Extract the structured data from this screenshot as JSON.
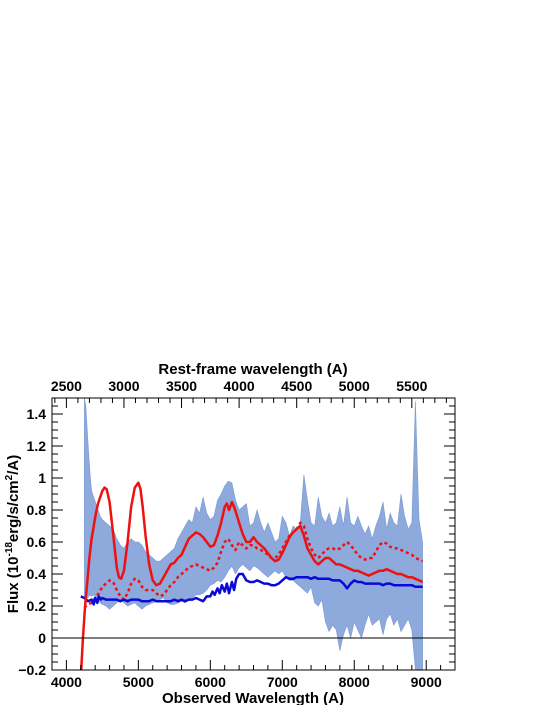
{
  "chart_data": {
    "type": "line",
    "title": "",
    "xlabel": "Observed Wavelength (A)",
    "x2label": "Rest-frame wavelength (A)",
    "ylabel_parts": {
      "prefix": "Flux (10",
      "exp1": "-18",
      "mid": "erg/s/cm",
      "exp2": "2",
      "suffix": "/A)"
    },
    "xlim": [
      3800,
      9400
    ],
    "ylim": [
      -0.2,
      1.5
    ],
    "x_ticks": [
      4000,
      5000,
      6000,
      7000,
      8000,
      9000
    ],
    "x_tick_labels": [
      "4000",
      "5000",
      "6000",
      "7000",
      "8000",
      "9000"
    ],
    "y_ticks": [
      -0.2,
      0,
      0.2,
      0.4,
      0.6,
      0.8,
      1,
      1.2,
      1.4
    ],
    "y_tick_labels": [
      "−0.2",
      "0",
      "0.2",
      "0.4",
      "0.6",
      "0.8",
      "1",
      "1.2",
      "1.4"
    ],
    "x2_ticks": [
      2500,
      3000,
      3500,
      4000,
      4500,
      5000,
      5500
    ],
    "x2_tick_labels": [
      "2500",
      "3000",
      "3500",
      "4000",
      "4500",
      "5000",
      "5500"
    ],
    "rest_frame_factor": 1.6,
    "reference_line_y": 0,
    "grid": false,
    "colors": {
      "observed": "#7a9ad6",
      "model": "#ee1111",
      "template": "#ee1111",
      "host": "#0a0ad8",
      "axis": "#000000"
    },
    "series": [
      {
        "style": "observed-band",
        "x": [
          4250,
          4270,
          4290,
          4310,
          4330,
          4350,
          4380,
          4410,
          4440,
          4470,
          4500,
          4550,
          4600,
          4650,
          4700,
          4750,
          4800,
          4850,
          4900,
          4950,
          5000,
          5050,
          5100,
          5150,
          5200,
          5250,
          5300,
          5350,
          5400,
          5450,
          5500,
          5550,
          5600,
          5650,
          5700,
          5750,
          5800,
          5850,
          5900,
          5950,
          6000,
          6050,
          6100,
          6150,
          6200,
          6250,
          6300,
          6350,
          6400,
          6450,
          6500,
          6550,
          6600,
          6650,
          6700,
          6750,
          6800,
          6850,
          6900,
          6950,
          7000,
          7050,
          7100,
          7150,
          7200,
          7250,
          7300,
          7350,
          7400,
          7450,
          7500,
          7550,
          7600,
          7650,
          7700,
          7750,
          7800,
          7850,
          7900,
          7950,
          8000,
          8050,
          8100,
          8150,
          8200,
          8250,
          8300,
          8350,
          8400,
          8450,
          8500,
          8550,
          8600,
          8650,
          8700,
          8750,
          8800,
          8850,
          8900,
          8950
        ],
        "upper": [
          1.5,
          1.45,
          1.3,
          1.15,
          1.02,
          0.92,
          0.88,
          0.84,
          0.8,
          0.76,
          0.74,
          0.72,
          0.7,
          0.68,
          0.62,
          0.58,
          0.56,
          0.6,
          0.62,
          0.6,
          0.6,
          0.58,
          0.54,
          0.52,
          0.5,
          0.48,
          0.48,
          0.5,
          0.52,
          0.54,
          0.56,
          0.62,
          0.66,
          0.7,
          0.74,
          0.72,
          0.82,
          0.78,
          0.88,
          0.78,
          0.74,
          0.76,
          0.86,
          0.9,
          0.95,
          0.98,
          0.97,
          0.86,
          0.8,
          0.82,
          0.84,
          0.7,
          0.72,
          0.8,
          0.72,
          0.66,
          0.72,
          0.66,
          0.6,
          0.62,
          0.76,
          0.72,
          0.64,
          0.7,
          0.68,
          0.72,
          1.02,
          0.86,
          0.72,
          0.7,
          0.88,
          0.76,
          0.72,
          0.78,
          0.7,
          0.72,
          0.82,
          0.7,
          0.88,
          0.72,
          0.7,
          0.76,
          0.7,
          0.65,
          0.7,
          0.62,
          0.7,
          0.76,
          0.85,
          0.68,
          0.78,
          0.72,
          0.7,
          0.9,
          0.76,
          0.68,
          0.72,
          1.48,
          0.74,
          0.6
        ],
        "lower": [
          0.25,
          0.26,
          0.25,
          0.26,
          0.27,
          0.26,
          0.27,
          0.25,
          0.24,
          0.22,
          0.21,
          0.2,
          0.18,
          0.2,
          0.22,
          0.24,
          0.22,
          0.2,
          0.21,
          0.22,
          0.2,
          0.18,
          0.2,
          0.21,
          0.22,
          0.23,
          0.24,
          0.25,
          0.22,
          0.21,
          0.21,
          0.22,
          0.23,
          0.22,
          0.24,
          0.25,
          0.27,
          0.27,
          0.28,
          0.3,
          0.33,
          0.34,
          0.36,
          0.35,
          0.38,
          0.42,
          0.45,
          0.4,
          0.44,
          0.46,
          0.44,
          0.42,
          0.45,
          0.44,
          0.42,
          0.4,
          0.38,
          0.4,
          0.42,
          0.4,
          0.42,
          0.38,
          0.36,
          0.36,
          0.34,
          0.32,
          0.3,
          0.28,
          0.32,
          0.22,
          0.2,
          0.24,
          0.1,
          0.04,
          0.08,
          0.05,
          -0.08,
          0.02,
          0.08,
          0.0,
          0.1,
          0.05,
          0.0,
          0.08,
          0.15,
          0.08,
          0.1,
          0.12,
          0.02,
          0.12,
          0.15,
          0.08,
          0.12,
          0.04,
          0.08,
          0.12,
          0.05,
          -0.2,
          -0.2,
          -0.2
        ]
      },
      {
        "style": "model-solid",
        "x": [
          4200,
          4230,
          4260,
          4290,
          4320,
          4350,
          4380,
          4410,
          4440,
          4470,
          4500,
          4530,
          4560,
          4600,
          4650,
          4700,
          4730,
          4760,
          4800,
          4850,
          4900,
          4950,
          5000,
          5030,
          5060,
          5100,
          5150,
          5200,
          5250,
          5300,
          5350,
          5400,
          5450,
          5500,
          5550,
          5600,
          5650,
          5700,
          5750,
          5800,
          5850,
          5900,
          5950,
          6000,
          6050,
          6100,
          6150,
          6200,
          6230,
          6260,
          6300,
          6330,
          6360,
          6400,
          6450,
          6500,
          6550,
          6600,
          6650,
          6700,
          6750,
          6800,
          6850,
          6900,
          6950,
          7000,
          7050,
          7100,
          7150,
          7200,
          7250,
          7300,
          7350,
          7400,
          7450,
          7500,
          7550,
          7600,
          7650,
          7700,
          7750,
          7800,
          7850,
          7900,
          7950,
          8000,
          8050,
          8100,
          8150,
          8200,
          8250,
          8300,
          8350,
          8400,
          8450,
          8500,
          8550,
          8600,
          8650,
          8700,
          8750,
          8800,
          8850,
          8900,
          8950
        ],
        "y": [
          -0.25,
          0.0,
          0.2,
          0.35,
          0.5,
          0.62,
          0.7,
          0.78,
          0.84,
          0.88,
          0.92,
          0.94,
          0.93,
          0.85,
          0.65,
          0.44,
          0.38,
          0.37,
          0.42,
          0.6,
          0.82,
          0.94,
          0.97,
          0.93,
          0.82,
          0.64,
          0.46,
          0.36,
          0.33,
          0.34,
          0.38,
          0.42,
          0.46,
          0.47,
          0.5,
          0.52,
          0.57,
          0.62,
          0.64,
          0.66,
          0.65,
          0.63,
          0.6,
          0.57,
          0.58,
          0.64,
          0.72,
          0.82,
          0.84,
          0.8,
          0.85,
          0.82,
          0.78,
          0.72,
          0.65,
          0.6,
          0.6,
          0.63,
          0.6,
          0.58,
          0.56,
          0.53,
          0.5,
          0.48,
          0.49,
          0.53,
          0.58,
          0.63,
          0.66,
          0.68,
          0.7,
          0.64,
          0.56,
          0.52,
          0.48,
          0.46,
          0.48,
          0.5,
          0.5,
          0.48,
          0.46,
          0.46,
          0.45,
          0.44,
          0.43,
          0.42,
          0.42,
          0.41,
          0.4,
          0.39,
          0.4,
          0.41,
          0.42,
          0.42,
          0.43,
          0.42,
          0.41,
          0.4,
          0.4,
          0.39,
          0.38,
          0.38,
          0.37,
          0.36,
          0.35
        ]
      },
      {
        "style": "template-dashed",
        "x": [
          4250,
          4300,
          4350,
          4400,
          4450,
          4500,
          4550,
          4600,
          4650,
          4700,
          4750,
          4800,
          4850,
          4900,
          4950,
          5000,
          5050,
          5100,
          5150,
          5200,
          5250,
          5300,
          5350,
          5400,
          5450,
          5500,
          5550,
          5600,
          5650,
          5700,
          5750,
          5800,
          5850,
          5900,
          5950,
          6000,
          6050,
          6100,
          6150,
          6200,
          6250,
          6300,
          6350,
          6400,
          6450,
          6500,
          6550,
          6600,
          6650,
          6700,
          6750,
          6800,
          6850,
          6900,
          6950,
          7000,
          7050,
          7100,
          7150,
          7200,
          7250,
          7300,
          7350,
          7400,
          7450,
          7500,
          7550,
          7600,
          7650,
          7700,
          7750,
          7800,
          7850,
          7900,
          7950,
          8000,
          8050,
          8100,
          8150,
          8200,
          8250,
          8300,
          8350,
          8400,
          8450,
          8500,
          8550,
          8600,
          8650,
          8700,
          8750,
          8800,
          8850,
          8900,
          8950
        ],
        "y": [
          0.19,
          0.21,
          0.22,
          0.25,
          0.28,
          0.32,
          0.34,
          0.36,
          0.35,
          0.3,
          0.26,
          0.24,
          0.28,
          0.34,
          0.37,
          0.36,
          0.32,
          0.3,
          0.3,
          0.3,
          0.28,
          0.26,
          0.27,
          0.3,
          0.33,
          0.35,
          0.38,
          0.4,
          0.42,
          0.44,
          0.45,
          0.46,
          0.45,
          0.44,
          0.43,
          0.42,
          0.44,
          0.47,
          0.54,
          0.6,
          0.62,
          0.58,
          0.55,
          0.6,
          0.58,
          0.56,
          0.58,
          0.58,
          0.56,
          0.55,
          0.54,
          0.52,
          0.5,
          0.5,
          0.52,
          0.56,
          0.6,
          0.64,
          0.66,
          0.68,
          0.72,
          0.7,
          0.62,
          0.56,
          0.52,
          0.5,
          0.52,
          0.55,
          0.56,
          0.56,
          0.55,
          0.56,
          0.58,
          0.6,
          0.58,
          0.55,
          0.52,
          0.5,
          0.49,
          0.5,
          0.5,
          0.54,
          0.58,
          0.6,
          0.59,
          0.57,
          0.56,
          0.56,
          0.55,
          0.54,
          0.53,
          0.52,
          0.5,
          0.49,
          0.48
        ]
      },
      {
        "style": "host-solid",
        "x": [
          4200,
          4250,
          4300,
          4350,
          4380,
          4400,
          4430,
          4450,
          4480,
          4500,
          4550,
          4600,
          4650,
          4700,
          4750,
          4800,
          4850,
          4900,
          4950,
          5000,
          5050,
          5100,
          5150,
          5200,
          5250,
          5300,
          5350,
          5400,
          5450,
          5500,
          5550,
          5600,
          5650,
          5700,
          5750,
          5800,
          5850,
          5900,
          5950,
          6000,
          6030,
          6060,
          6100,
          6130,
          6160,
          6200,
          6230,
          6260,
          6300,
          6330,
          6360,
          6400,
          6450,
          6500,
          6550,
          6600,
          6650,
          6700,
          6750,
          6800,
          6850,
          6900,
          6950,
          7000,
          7050,
          7100,
          7150,
          7200,
          7250,
          7300,
          7350,
          7400,
          7450,
          7500,
          7550,
          7600,
          7650,
          7700,
          7750,
          7800,
          7850,
          7900,
          7950,
          8000,
          8050,
          8100,
          8150,
          8200,
          8250,
          8300,
          8350,
          8400,
          8450,
          8500,
          8550,
          8600,
          8650,
          8700,
          8750,
          8800,
          8850,
          8900,
          8950
        ],
        "y": [
          0.26,
          0.25,
          0.23,
          0.24,
          0.21,
          0.25,
          0.22,
          0.26,
          0.24,
          0.25,
          0.24,
          0.24,
          0.24,
          0.24,
          0.23,
          0.24,
          0.23,
          0.24,
          0.24,
          0.24,
          0.23,
          0.23,
          0.23,
          0.24,
          0.23,
          0.23,
          0.23,
          0.23,
          0.23,
          0.24,
          0.23,
          0.24,
          0.23,
          0.24,
          0.24,
          0.25,
          0.24,
          0.23,
          0.26,
          0.26,
          0.29,
          0.27,
          0.31,
          0.28,
          0.33,
          0.29,
          0.34,
          0.28,
          0.35,
          0.3,
          0.37,
          0.4,
          0.4,
          0.36,
          0.35,
          0.35,
          0.36,
          0.35,
          0.34,
          0.34,
          0.33,
          0.33,
          0.34,
          0.36,
          0.38,
          0.37,
          0.37,
          0.38,
          0.38,
          0.38,
          0.38,
          0.37,
          0.38,
          0.37,
          0.37,
          0.37,
          0.37,
          0.36,
          0.36,
          0.36,
          0.34,
          0.31,
          0.34,
          0.36,
          0.35,
          0.35,
          0.34,
          0.34,
          0.34,
          0.34,
          0.34,
          0.33,
          0.34,
          0.34,
          0.33,
          0.33,
          0.33,
          0.33,
          0.33,
          0.33,
          0.32,
          0.32,
          0.32
        ]
      }
    ]
  }
}
